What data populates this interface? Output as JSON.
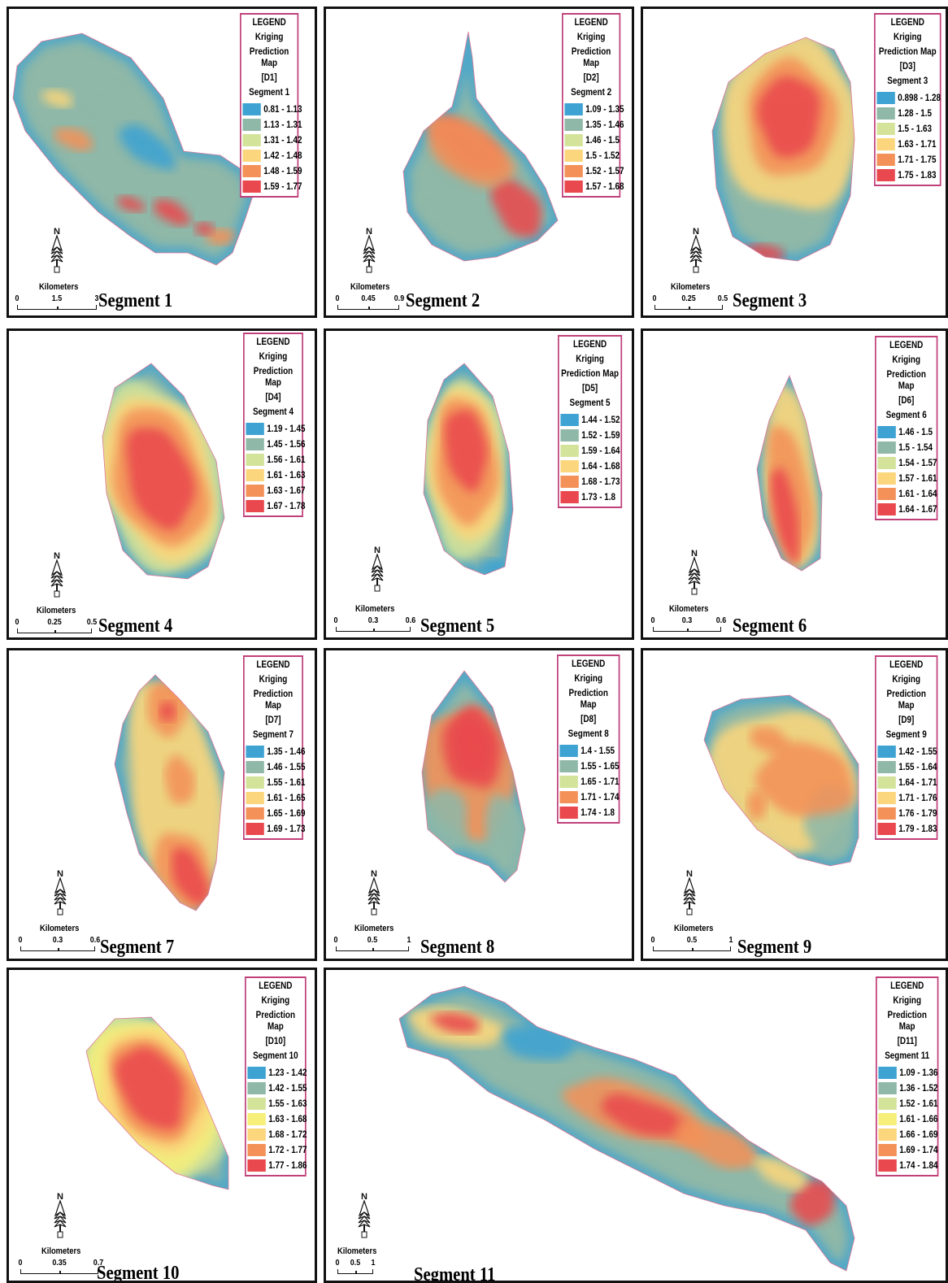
{
  "legend_common": {
    "title": "LEGEND",
    "label_line1": "Kriging",
    "label_line2": "Prediction Map"
  },
  "colors": {
    "class1": "#3ea2d2",
    "class2": "#8fb8a8",
    "class3": "#d3e39a",
    "class4": "#fbd67c",
    "class5": "#f39158",
    "class6": "#e9484e",
    "border_panel": "#111111",
    "border_legend": "#c0407a"
  },
  "north_arrow_letter": "N",
  "scale_unit": "Kilometers",
  "panels": [
    {
      "title": "Segment 1",
      "legend_code": "[D1]",
      "legend_segment": "Segment 1",
      "classes": [
        "0.81 - 1.13",
        "1.13 - 1.31",
        "1.31 - 1.42",
        "1.42 - 1.48",
        "1.48 - 1.59",
        "1.59 - 1.77"
      ],
      "scale_ticks": [
        "0",
        "1.5",
        "3"
      ]
    },
    {
      "title": "Segment 2",
      "legend_code": "[D2]",
      "legend_segment": "Segment 2",
      "classes": [
        "1.09 - 1.35",
        "1.35 - 1.46",
        "1.46 - 1.5",
        "1.5 - 1.52",
        "1.52 - 1.57",
        "1.57 - 1.68"
      ],
      "scale_ticks": [
        "0",
        "0.45",
        "0.9"
      ]
    },
    {
      "title": "Segment 3",
      "legend_code": "[D3]",
      "legend_segment": "Segment 3",
      "classes": [
        "0.898 - 1.28",
        "1.28 - 1.5",
        "1.5 - 1.63",
        "1.63 - 1.71",
        "1.71 - 1.75",
        "1.75 - 1.83"
      ],
      "scale_ticks": [
        "0",
        "0.25",
        "0.5"
      ]
    },
    {
      "title": "Segment 4",
      "legend_code": "[D4]",
      "legend_segment": "Segment 4",
      "classes": [
        "1.19 - 1.45",
        "1.45 - 1.56",
        "1.56 - 1.61",
        "1.61 - 1.63",
        "1.63 - 1.67",
        "1.67 - 1.78"
      ],
      "scale_ticks": [
        "0",
        "0.25",
        "0.5"
      ]
    },
    {
      "title": "Segment 5",
      "legend_code": "[D5]",
      "legend_segment": "Segment 5",
      "classes": [
        "1.44 - 1.52",
        "1.52 - 1.59",
        "1.59 - 1.64",
        "1.64 - 1.68",
        "1.68 - 1.73",
        "1.73 - 1.8"
      ],
      "scale_ticks": [
        "0",
        "0.3",
        "0.6"
      ]
    },
    {
      "title": "Segment 6",
      "legend_code": "[D6]",
      "legend_segment": "Segment 6",
      "classes": [
        "1.46 - 1.5",
        "1.5 - 1.54",
        "1.54 - 1.57",
        "1.57 - 1.61",
        "1.61 - 1.64",
        "1.64 - 1.67"
      ],
      "scale_ticks": [
        "0",
        "0.3",
        "0.6"
      ]
    },
    {
      "title": "Segment 7",
      "legend_code": "[D7]",
      "legend_segment": "Segment 7",
      "classes": [
        "1.35 - 1.46",
        "1.46 - 1.55",
        "1.55 - 1.61",
        "1.61 - 1.65",
        "1.65 - 1.69",
        "1.69 - 1.73"
      ],
      "scale_ticks": [
        "0",
        "0.3",
        "0.6"
      ]
    },
    {
      "title": "Segment 8",
      "legend_code": "[D8]",
      "legend_segment": "Segment 8",
      "classes": [
        "1.4 - 1.55",
        "1.55 - 1.65",
        "1.65 - 1.71",
        "1.71 - 1.74",
        "1.74 - 1.8"
      ],
      "scale_ticks": [
        "0",
        "0.5",
        "1"
      ]
    },
    {
      "title": "Segment 9",
      "legend_code": "[D9]",
      "legend_segment": "Segment 9",
      "classes": [
        "1.42 - 1.55",
        "1.55 - 1.64",
        "1.64 - 1.71",
        "1.71 - 1.76",
        "1.76 - 1.79",
        "1.79 - 1.83"
      ],
      "scale_ticks": [
        "0",
        "0.5",
        "1"
      ]
    },
    {
      "title": "Segment 10",
      "legend_code": "[D10]",
      "legend_segment": "Segment 10",
      "classes": [
        "1.23 - 1.42",
        "1.42 - 1.55",
        "1.55 - 1.63",
        "1.63 - 1.68",
        "1.68 - 1.72",
        "1.72 - 1.77",
        "1.77 - 1.86"
      ],
      "scale_ticks": [
        "0",
        "0.35",
        "0.7"
      ]
    },
    {
      "title": "Segment 11",
      "legend_code": "[D11]",
      "legend_segment": "Segment 11",
      "classes": [
        "1.09 - 1.36",
        "1.36 - 1.52",
        "1.52 - 1.61",
        "1.61 - 1.66",
        "1.66 - 1.69",
        "1.69 - 1.74",
        "1.74 - 1.84"
      ],
      "scale_ticks": [
        "0",
        "0.5",
        "1"
      ]
    }
  ]
}
